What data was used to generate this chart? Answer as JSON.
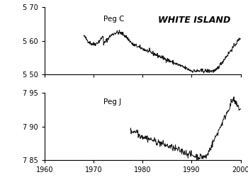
{
  "title": "WHITE ISLAND",
  "pegC_label": "Peg C",
  "pegJ_label": "Peg J",
  "xlim": [
    1960,
    2000
  ],
  "pegC_ylim": [
    5.5,
    5.7
  ],
  "pegC_yticks": [
    5.5,
    5.6,
    5.7
  ],
  "pegC_yticklabels": [
    "5 50",
    "5 60",
    "5 70"
  ],
  "pegJ_ylim": [
    7.85,
    7.95
  ],
  "pegJ_yticks": [
    7.85,
    7.9,
    7.95
  ],
  "pegJ_yticklabels": [
    "7 85",
    "7 90",
    "7 95"
  ],
  "xticks": [
    1960,
    1970,
    1980,
    1990,
    2000
  ],
  "line_color": "#111111",
  "bg_color": "#ffffff"
}
